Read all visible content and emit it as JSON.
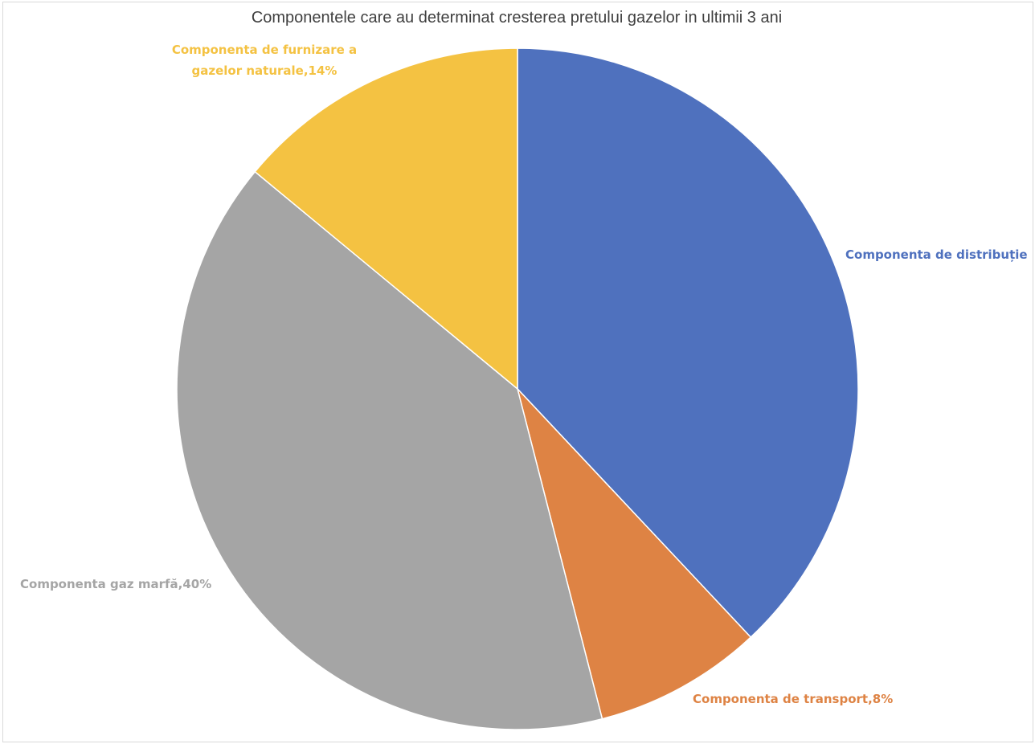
{
  "chart_data": {
    "type": "pie",
    "title": "Componentele care au determinat cresterea pretului gazelor in ultimii 3 ani",
    "slices": [
      {
        "label_lines": [
          "Componenta de distribuție"
        ],
        "value": 38,
        "color": "#4F71BE"
      },
      {
        "label_lines": [
          "Componenta de transport,8%"
        ],
        "value": 8,
        "color": "#DE8344"
      },
      {
        "label_lines": [
          "Componenta gaz marfă,40%"
        ],
        "value": 40,
        "color": "#A5A5A5"
      },
      {
        "label_lines": [
          "Componenta de furnizare a",
          "gazelor naturale,14%"
        ],
        "value": 14,
        "color": "#F4C242"
      }
    ],
    "start_angle_deg": 0,
    "direction": "clockwise",
    "legend": "none"
  }
}
